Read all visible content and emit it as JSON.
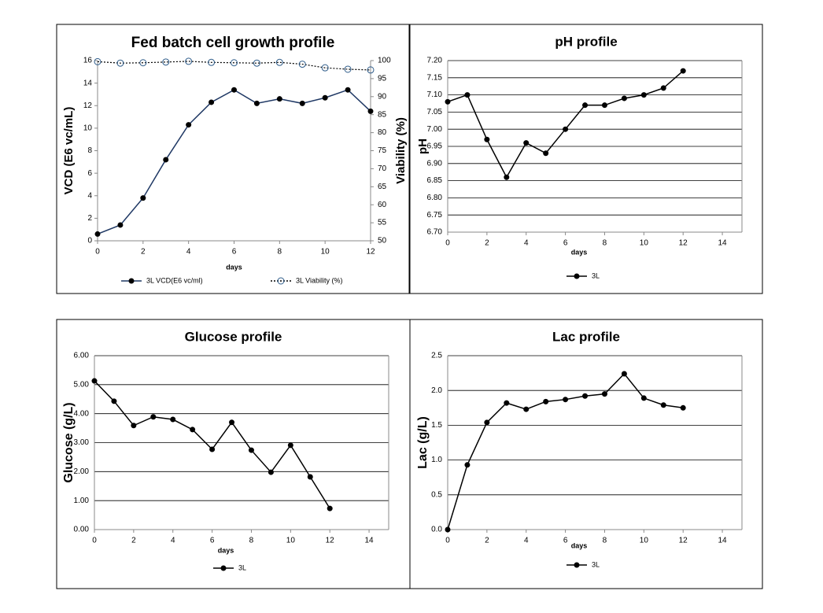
{
  "chart_data": [
    {
      "type": "line",
      "title": "Fed batch cell growth profile",
      "x_label": "days",
      "y_label": "VCD (E6 vc/mL)",
      "y2_label": "Viability (%)",
      "x": [
        0,
        1,
        2,
        3,
        4,
        5,
        6,
        7,
        8,
        9,
        10,
        11,
        12
      ],
      "series": [
        {
          "name": "3L VCD(E6 vc/ml)",
          "color": "#1f3864",
          "marker_color": "#000000",
          "line_style": "solid",
          "marker_fill": "filled",
          "values": [
            0.6,
            1.4,
            3.8,
            7.2,
            10.3,
            12.3,
            13.4,
            12.2,
            12.6,
            12.2,
            12.7,
            13.4,
            11.5
          ]
        },
        {
          "name": "3L Viability (%)",
          "color": "#000000",
          "marker_color": "#2e5c8a",
          "line_style": "dotted",
          "marker_fill": "open",
          "axis": "y2",
          "values": [
            99.7,
            99.3,
            99.4,
            99.6,
            99.8,
            99.5,
            99.4,
            99.3,
            99.5,
            99.0,
            98.0,
            97.6,
            97.4
          ]
        }
      ],
      "xlim": [
        0,
        12
      ],
      "xticks": [
        0,
        2,
        4,
        6,
        8,
        10,
        12
      ],
      "ylim": [
        0,
        16
      ],
      "yticks": [
        0,
        2,
        4,
        6,
        8,
        10,
        12,
        14,
        16
      ],
      "y2lim": [
        50,
        100
      ],
      "y2ticks": [
        50,
        55,
        60,
        65,
        70,
        75,
        80,
        85,
        90,
        95,
        100
      ],
      "grid": false,
      "legend": "bottom"
    },
    {
      "type": "line",
      "title": "pH profile",
      "x_label": "days",
      "y_label": "pH",
      "x": [
        0,
        1,
        2,
        3,
        4,
        5,
        6,
        7,
        8,
        9,
        10,
        11,
        12
      ],
      "series": [
        {
          "name": "3L",
          "color": "#000000",
          "marker_color": "#000000",
          "line_style": "solid",
          "marker_fill": "filled",
          "values": [
            7.08,
            7.1,
            6.97,
            6.86,
            6.96,
            6.93,
            7.0,
            7.07,
            7.07,
            7.09,
            7.1,
            7.12,
            7.17
          ]
        }
      ],
      "xlim": [
        0,
        15
      ],
      "xticks": [
        0,
        2,
        4,
        6,
        8,
        10,
        12,
        14
      ],
      "ylim": [
        6.7,
        7.2
      ],
      "yticks": [
        {
          "value": 6.7,
          "label": "6.70"
        },
        {
          "value": 6.75,
          "label": "6.75"
        },
        {
          "value": 6.8,
          "label": "6.80"
        },
        {
          "value": 6.85,
          "label": "6.85"
        },
        {
          "value": 6.9,
          "label": "6.90"
        },
        {
          "value": 6.95,
          "label": "6.95"
        },
        {
          "value": 7.0,
          "label": "7.00"
        },
        {
          "value": 7.05,
          "label": "7.05"
        },
        {
          "value": 7.1,
          "label": "7.10"
        },
        {
          "value": 7.15,
          "label": "7.15"
        },
        {
          "value": 7.2,
          "label": "7.20"
        }
      ],
      "grid": true,
      "legend": "bottom"
    },
    {
      "type": "line",
      "title": "Glucose profile",
      "x_label": "days",
      "y_label": "Glucose (g/L)",
      "x": [
        0,
        1,
        2,
        3,
        4,
        5,
        6,
        7,
        8,
        9,
        10,
        11,
        12
      ],
      "series": [
        {
          "name": "3L",
          "color": "#000000",
          "marker_color": "#000000",
          "line_style": "solid",
          "marker_fill": "filled",
          "values": [
            5.13,
            4.43,
            3.59,
            3.89,
            3.8,
            3.45,
            2.77,
            3.7,
            2.74,
            1.98,
            2.91,
            1.82,
            0.73
          ]
        }
      ],
      "xlim": [
        0,
        15
      ],
      "xticks": [
        0,
        2,
        4,
        6,
        8,
        10,
        12,
        14
      ],
      "ylim": [
        0,
        6
      ],
      "yticks": [
        {
          "value": 0,
          "label": "0.00"
        },
        {
          "value": 1,
          "label": "1.00"
        },
        {
          "value": 2,
          "label": "2.00"
        },
        {
          "value": 3,
          "label": "3.00"
        },
        {
          "value": 4,
          "label": "4.00"
        },
        {
          "value": 5,
          "label": "5.00"
        },
        {
          "value": 6,
          "label": "6.00"
        }
      ],
      "grid": true,
      "legend": "bottom"
    },
    {
      "type": "line",
      "title": "Lac profile",
      "x_label": "days",
      "y_label": "Lac (g/L)",
      "x": [
        0,
        1,
        2,
        3,
        4,
        5,
        6,
        7,
        8,
        9,
        10,
        11,
        12
      ],
      "series": [
        {
          "name": "3L",
          "color": "#000000",
          "marker_color": "#000000",
          "line_style": "solid",
          "marker_fill": "filled",
          "values": [
            0,
            0.93,
            1.54,
            1.82,
            1.73,
            1.84,
            1.87,
            1.92,
            1.95,
            2.24,
            1.89,
            1.79,
            1.75
          ]
        }
      ],
      "xlim": [
        0,
        15
      ],
      "xticks": [
        0,
        2,
        4,
        6,
        8,
        10,
        12,
        14
      ],
      "ylim": [
        0,
        2.5
      ],
      "yticks": [
        {
          "value": 0,
          "label": "0.0"
        },
        {
          "value": 0.5,
          "label": "0.5"
        },
        {
          "value": 1,
          "label": "1.0"
        },
        {
          "value": 1.5,
          "label": "1.5"
        },
        {
          "value": 2,
          "label": "2.0"
        },
        {
          "value": 2.5,
          "label": "2.5"
        }
      ],
      "grid": true,
      "legend": "bottom"
    }
  ]
}
